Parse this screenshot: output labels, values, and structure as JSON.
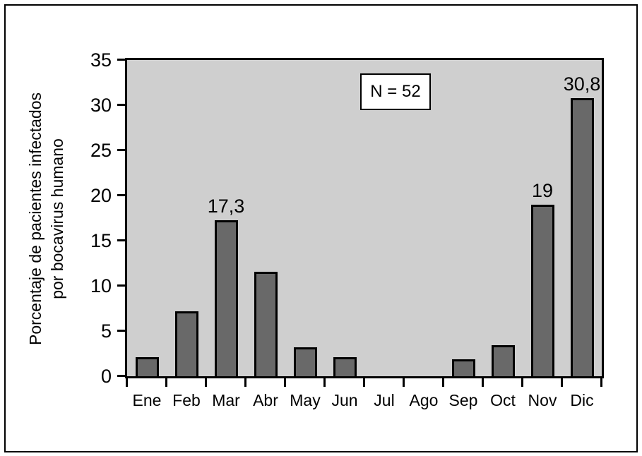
{
  "figure": {
    "background": "#ffffff",
    "frame_border_color": "#000000"
  },
  "chart_data": {
    "type": "bar",
    "title": "",
    "xlabel": "",
    "ylabel": "Porcentaje de pacientes infectados por bocavirus humano",
    "ylabel_lines": [
      "Porcentaje de pacientes infectados",
      "por bocavirus humano"
    ],
    "categories": [
      "Ene",
      "Feb",
      "Mar",
      "Abr",
      "May",
      "Jun",
      "Jul",
      "Ago",
      "Sep",
      "Oct",
      "Nov",
      "Dic"
    ],
    "values": [
      2.1,
      7.2,
      17.3,
      11.6,
      3.2,
      2.1,
      0,
      0,
      1.9,
      3.4,
      19,
      30.8
    ],
    "bar_labels": [
      "",
      "",
      "17,3",
      "",
      "",
      "",
      "",
      "",
      "",
      "",
      "19",
      "30,8"
    ],
    "annotation": "N = 52",
    "ylim": [
      0,
      35
    ],
    "yticks": [
      0,
      5,
      10,
      15,
      20,
      25,
      30,
      35
    ],
    "grid": false,
    "legend_position": "none",
    "colors": {
      "bar_fill": "#696969",
      "bar_border": "#000000",
      "plot_background": "#cfcfcf",
      "axis": "#000000"
    }
  }
}
